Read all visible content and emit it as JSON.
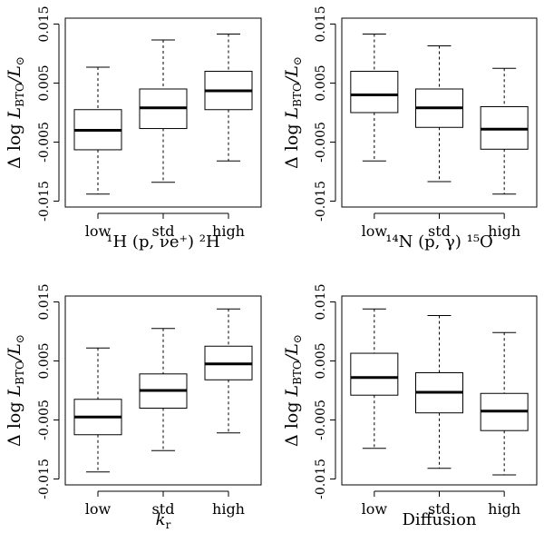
{
  "chart_data": [
    {
      "type": "box",
      "xlabel": "¹H (p, νe⁺) ²H",
      "ylabel": "Δ log L_BTO / L_⊙",
      "ylabel_parts": {
        "delta": "Δ log ",
        "L": "L",
        "sub": "BTO",
        "sep": "/",
        "L2": "L",
        "sun": "⊙"
      },
      "ylim": [
        -0.016,
        0.016
      ],
      "yticks": [
        "0.015",
        "0.005",
        "-0.005",
        "-0.015"
      ],
      "ytick_values": [
        0.015,
        0.005,
        -0.005,
        -0.015
      ],
      "categories": [
        "low",
        "std",
        "high"
      ],
      "boxes": [
        {
          "whisker_low": -0.0138,
          "q1": -0.0063,
          "median": -0.003,
          "q3": 0.0005,
          "whisker_high": 0.0077
        },
        {
          "whisker_low": -0.0118,
          "q1": -0.0027,
          "median": 0.0008,
          "q3": 0.004,
          "whisker_high": 0.0123
        },
        {
          "whisker_low": -0.0082,
          "q1": 0.0005,
          "median": 0.0037,
          "q3": 0.007,
          "whisker_high": 0.0133
        }
      ]
    },
    {
      "type": "box",
      "xlabel": "¹⁴N (p, γ) ¹⁵O",
      "ylabel": "Δ log L_BTO / L_⊙",
      "ylabel_parts": {
        "delta": "Δ log ",
        "L": "L",
        "sub": "BTO",
        "sep": "/",
        "L2": "L",
        "sun": "⊙"
      },
      "ylim": [
        -0.016,
        0.016
      ],
      "yticks": [
        "0.015",
        "0.005",
        "-0.005",
        "-0.015"
      ],
      "ytick_values": [
        0.015,
        0.005,
        -0.005,
        -0.015
      ],
      "categories": [
        "low",
        "std",
        "high"
      ],
      "boxes": [
        {
          "whisker_low": -0.0082,
          "q1": 0.0,
          "median": 0.003,
          "q3": 0.007,
          "whisker_high": 0.0133
        },
        {
          "whisker_low": -0.0117,
          "q1": -0.0025,
          "median": 0.0008,
          "q3": 0.004,
          "whisker_high": 0.0113
        },
        {
          "whisker_low": -0.0138,
          "q1": -0.0062,
          "median": -0.0028,
          "q3": 0.001,
          "whisker_high": 0.0075
        }
      ]
    },
    {
      "type": "box",
      "xlabel": "k_r",
      "xlabel_parts": {
        "k": "k",
        "sub": "r"
      },
      "ylabel": "Δ log L_BTO / L_⊙",
      "ylabel_parts": {
        "delta": "Δ log ",
        "L": "L",
        "sub": "BTO",
        "sep": "/",
        "L2": "L",
        "sun": "⊙"
      },
      "ylim": [
        -0.016,
        0.016
      ],
      "yticks": [
        "0.015",
        "0.005",
        "-0.005",
        "-0.015"
      ],
      "ytick_values": [
        0.015,
        0.005,
        -0.005,
        -0.015
      ],
      "categories": [
        "low",
        "std",
        "high"
      ],
      "boxes": [
        {
          "whisker_low": -0.0138,
          "q1": -0.0075,
          "median": -0.0045,
          "q3": -0.0015,
          "whisker_high": 0.0072
        },
        {
          "whisker_low": -0.0102,
          "q1": -0.003,
          "median": 0.0,
          "q3": 0.0028,
          "whisker_high": 0.0105
        },
        {
          "whisker_low": -0.0072,
          "q1": 0.0018,
          "median": 0.0045,
          "q3": 0.0075,
          "whisker_high": 0.0138
        }
      ]
    },
    {
      "type": "box",
      "xlabel": "Diffusion",
      "ylabel": "Δ log L_BTO / L_⊙",
      "ylabel_parts": {
        "delta": "Δ log ",
        "L": "L",
        "sub": "BTO",
        "sep": "/",
        "L2": "L",
        "sun": "⊙"
      },
      "ylim": [
        -0.016,
        0.016
      ],
      "yticks": [
        "0.015",
        "0.005",
        "-0.005",
        "-0.015"
      ],
      "ytick_values": [
        0.015,
        0.005,
        -0.005,
        -0.015
      ],
      "categories": [
        "low",
        "std",
        "high"
      ],
      "boxes": [
        {
          "whisker_low": -0.0098,
          "q1": -0.0008,
          "median": 0.0022,
          "q3": 0.0063,
          "whisker_high": 0.0138
        },
        {
          "whisker_low": -0.0132,
          "q1": -0.0038,
          "median": -0.0003,
          "q3": 0.003,
          "whisker_high": 0.0127
        },
        {
          "whisker_low": -0.0143,
          "q1": -0.0068,
          "median": -0.0035,
          "q3": -0.0005,
          "whisker_high": 0.0098
        }
      ]
    }
  ]
}
